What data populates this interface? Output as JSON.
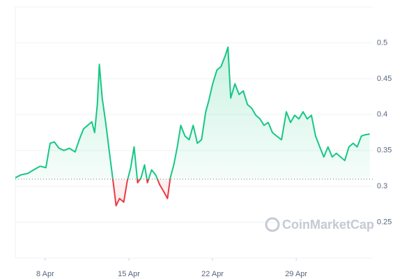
{
  "chart_data": {
    "type": "line",
    "watermark": "CoinMarketCap",
    "x": [
      5.5,
      5.97,
      6.55,
      7.13,
      7.59,
      8.06,
      8.41,
      8.76,
      9.16,
      9.57,
      10.03,
      10.5,
      10.85,
      11.2,
      11.55,
      11.9,
      12.13,
      12.36,
      12.53,
      12.77,
      13.06,
      13.35,
      13.64,
      13.93,
      14.22,
      14.57,
      14.86,
      15.15,
      15.44,
      15.73,
      16.02,
      16.31,
      16.55,
      16.9,
      17.24,
      17.59,
      17.94,
      18.23,
      18.47,
      18.76,
      19.05,
      19.34,
      19.69,
      20.04,
      20.38,
      20.73,
      21.08,
      21.43,
      21.66,
      22.01,
      22.36,
      22.71,
      23.06,
      23.29,
      23.52,
      23.87,
      24.22,
      24.57,
      24.92,
      25.27,
      25.62,
      25.97,
      26.31,
      26.66,
      27.01,
      27.36,
      27.77,
      28.17,
      28.52,
      28.87,
      29.22,
      29.57,
      29.92,
      30.27,
      30.62,
      30.97,
      31.31,
      31.66,
      32.01,
      32.36,
      32.71,
      33.06,
      33.41,
      33.76,
      34.1,
      34.45,
      34.8,
      35.15
    ],
    "values": [
      0.312,
      0.316,
      0.318,
      0.324,
      0.328,
      0.326,
      0.36,
      0.362,
      0.353,
      0.35,
      0.353,
      0.348,
      0.365,
      0.38,
      0.385,
      0.39,
      0.375,
      0.414,
      0.47,
      0.423,
      0.389,
      0.35,
      0.312,
      0.273,
      0.283,
      0.278,
      0.307,
      0.326,
      0.355,
      0.305,
      0.312,
      0.33,
      0.305,
      0.323,
      0.316,
      0.302,
      0.292,
      0.283,
      0.312,
      0.33,
      0.355,
      0.385,
      0.37,
      0.365,
      0.385,
      0.36,
      0.365,
      0.404,
      0.418,
      0.443,
      0.462,
      0.467,
      0.482,
      0.494,
      0.423,
      0.443,
      0.428,
      0.433,
      0.414,
      0.409,
      0.399,
      0.394,
      0.385,
      0.389,
      0.375,
      0.37,
      0.365,
      0.404,
      0.389,
      0.399,
      0.394,
      0.404,
      0.394,
      0.399,
      0.37,
      0.355,
      0.341,
      0.355,
      0.341,
      0.346,
      0.341,
      0.336,
      0.355,
      0.36,
      0.355,
      0.37,
      0.372,
      0.373
    ],
    "baseline": 0.31,
    "up_color": "#16c784",
    "down_color": "#ea3943",
    "xlim": [
      5.5,
      35.4
    ],
    "xticks": [
      {
        "value": 8,
        "label": "8 Apr"
      },
      {
        "value": 15,
        "label": "15 Apr"
      },
      {
        "value": 22,
        "label": "22 Apr"
      },
      {
        "value": 29,
        "label": "29 Apr"
      }
    ],
    "ylim": [
      0.2,
      0.55
    ],
    "yticks": [
      0.25,
      0.3,
      0.35,
      0.4,
      0.45,
      0.5
    ],
    "grid": true
  }
}
